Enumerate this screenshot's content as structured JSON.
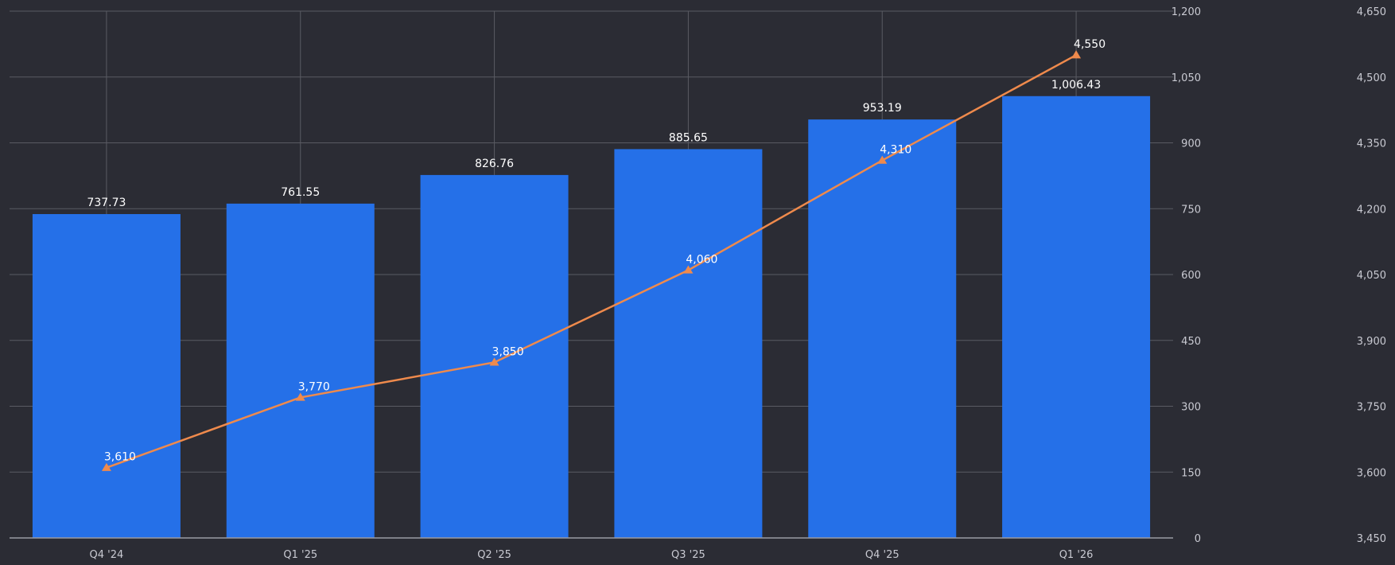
{
  "colors": {
    "background": "#2b2c34",
    "grid": "#5a5b63",
    "baseline": "#9a9ba3",
    "bar": "#2570e8",
    "line": "#ef8a4c",
    "text": "#ffffff",
    "tick_text": "#c9cad2"
  },
  "chart_data": {
    "type": "bar",
    "categories": [
      "Q4 '24",
      "Q1 '25",
      "Q2 '25",
      "Q3 '25",
      "Q4 '25",
      "Q1 '26"
    ],
    "series": [
      {
        "type": "bar",
        "axis": "left",
        "values": [
          737.73,
          761.55,
          826.76,
          885.65,
          953.19,
          1006.43
        ],
        "labels": [
          "737.73",
          "761.55",
          "826.76",
          "885.65",
          "953.19",
          "1,006.43"
        ]
      },
      {
        "type": "line",
        "axis": "right",
        "marker": "triangle",
        "values": [
          3610,
          3770,
          3850,
          4060,
          4310,
          4550
        ],
        "labels": [
          "3,610",
          "3,770",
          "3,850",
          "4,060",
          "4,310",
          "4,550"
        ]
      }
    ],
    "y_left": {
      "range": [
        0,
        1200
      ],
      "ticks": [
        0,
        150,
        300,
        450,
        600,
        750,
        900,
        1050,
        1200
      ],
      "tick_labels": [
        "0",
        "150",
        "300",
        "450",
        "600",
        "750",
        "900",
        "1,050",
        "1,200"
      ]
    },
    "y_right": {
      "range": [
        3450,
        4650
      ],
      "ticks": [
        3450,
        3600,
        3750,
        3900,
        4050,
        4200,
        4350,
        4500,
        4650
      ],
      "tick_labels": [
        "3,450",
        "3,600",
        "3,750",
        "3,900",
        "4,050",
        "4,200",
        "4,350",
        "4,500",
        "4,650"
      ]
    },
    "grid": true,
    "title": "",
    "xlabel": "",
    "ylabel": ""
  }
}
